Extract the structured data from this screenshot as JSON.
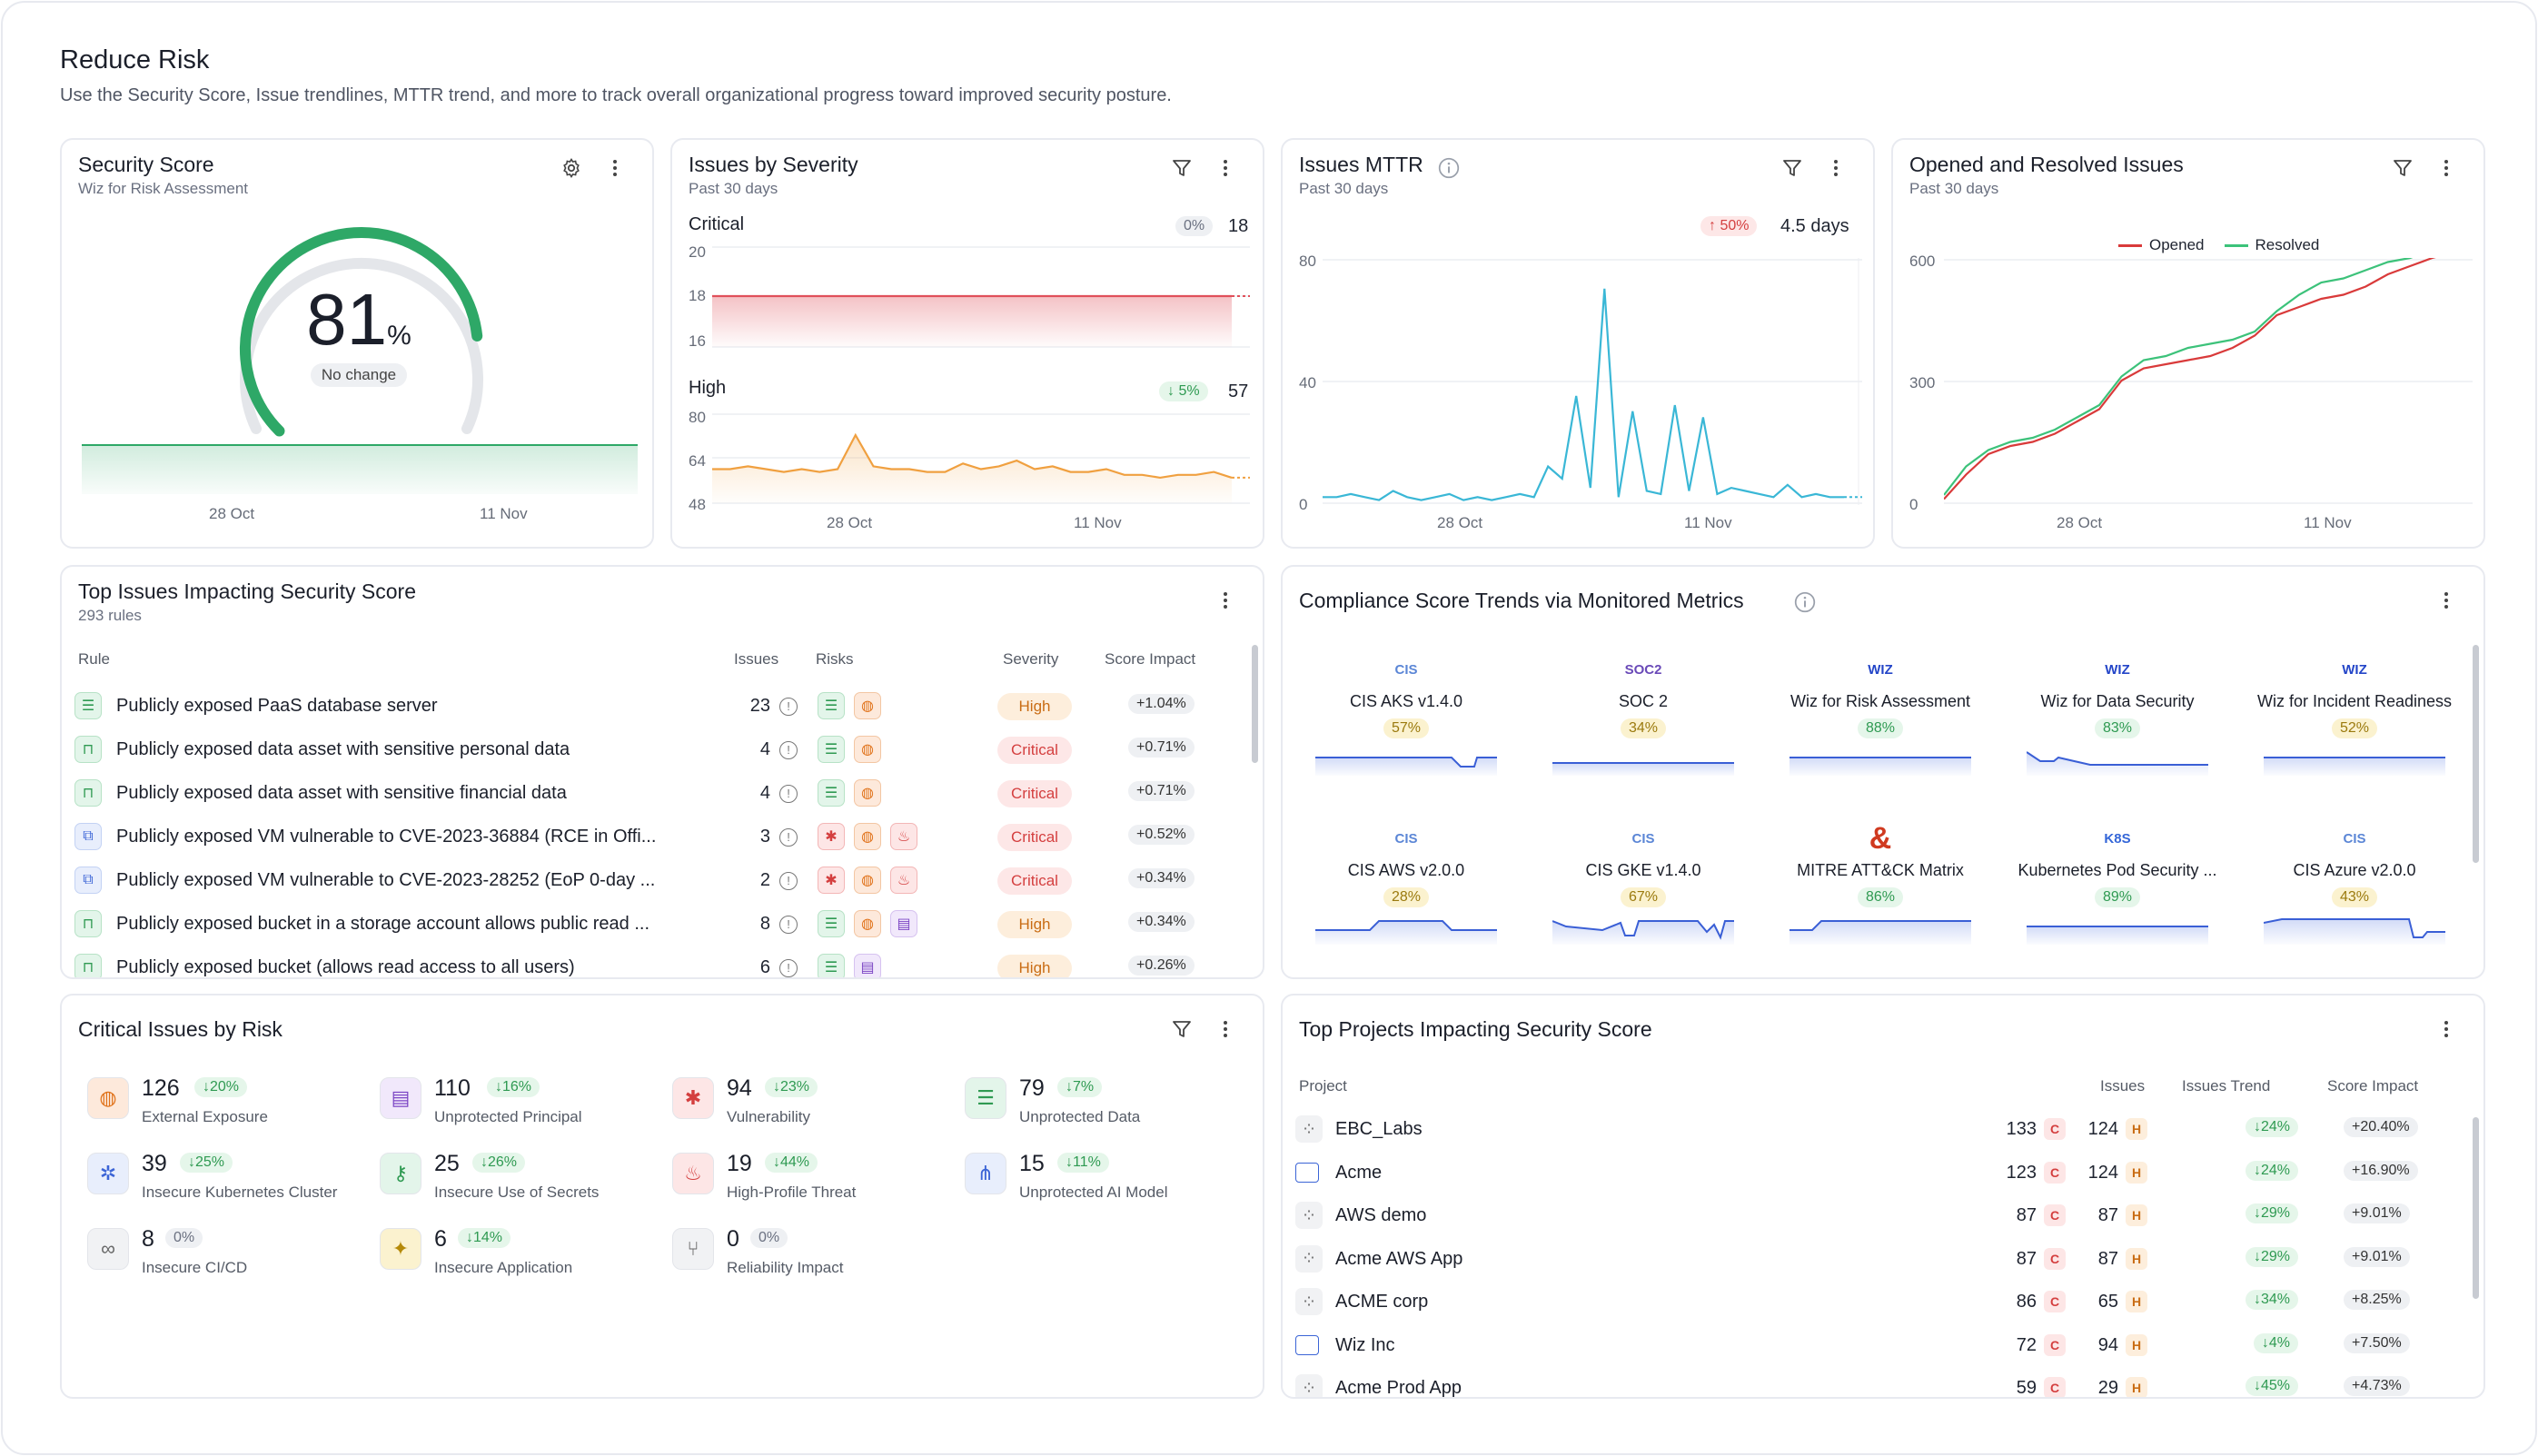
{
  "header": {
    "title": "Reduce Risk",
    "subtitle": "Use the Security Score, Issue trendlines, MTTR trend, and more to track overall organizational progress toward improved security posture."
  },
  "security_score": {
    "title": "Security Score",
    "subtitle": "Wiz for Risk Assessment",
    "value": "81",
    "unit": "%",
    "change": "No change",
    "score_fraction": 0.81,
    "x_ticks": [
      "28 Oct",
      "11 Nov"
    ]
  },
  "severity": {
    "title": "Issues by Severity",
    "subtitle": "Past 30 days",
    "critical": {
      "label": "Critical",
      "pct": "0%",
      "count": "18",
      "ticks": [
        "20",
        "18",
        "16"
      ]
    },
    "high": {
      "label": "High",
      "pct": "5%",
      "count": "57",
      "ticks": [
        "80",
        "64",
        "48"
      ]
    },
    "x_ticks": [
      "28 Oct",
      "11 Nov"
    ]
  },
  "mttr": {
    "title": "Issues MTTR",
    "subtitle": "Past 30 days",
    "pct": "50%",
    "value": "4.5 days",
    "ticks": [
      "80",
      "40",
      "0"
    ],
    "x_ticks": [
      "28 Oct",
      "11 Nov"
    ]
  },
  "opened": {
    "title": "Opened and Resolved Issues",
    "subtitle": "Past 30 days",
    "legend": [
      "Opened",
      "Resolved"
    ],
    "ticks": [
      "600",
      "300",
      "0"
    ],
    "x_ticks": [
      "28 Oct",
      "11 Nov"
    ],
    "colors": {
      "opened": "#d93a3a",
      "resolved": "#3cc27a"
    }
  },
  "chart_data": [
    {
      "type": "line",
      "series": [
        {
          "name": "Critical",
          "values": [
            18,
            18,
            18,
            18,
            18,
            18,
            18,
            18,
            18,
            18,
            18,
            18,
            18,
            18,
            18,
            18,
            18,
            18,
            18,
            18,
            18,
            18,
            18,
            18,
            18,
            18,
            18,
            18,
            18,
            18
          ]
        }
      ],
      "ylim": [
        16,
        20
      ]
    },
    {
      "type": "line",
      "series": [
        {
          "name": "High",
          "values": [
            60,
            60,
            61,
            60,
            59,
            60,
            59,
            60,
            72,
            61,
            60,
            60,
            59,
            59,
            62,
            60,
            61,
            63,
            60,
            61,
            59,
            59,
            60,
            58,
            58,
            57,
            58,
            58,
            59,
            57
          ]
        }
      ],
      "ylim": [
        48,
        80
      ]
    },
    {
      "type": "line",
      "series": [
        {
          "name": "MTTR",
          "values": [
            2,
            2,
            3,
            2,
            1,
            4,
            2,
            1,
            2,
            3,
            1,
            2,
            1,
            2,
            3,
            2,
            12,
            8,
            35,
            5,
            70,
            2,
            30,
            4,
            3,
            32,
            4,
            28,
            3,
            5,
            4,
            3,
            2,
            6,
            2,
            3,
            2,
            2
          ]
        }
      ],
      "ylim": [
        0,
        80
      ]
    },
    {
      "type": "line",
      "series": [
        {
          "name": "Opened",
          "values": [
            10,
            70,
            120,
            140,
            150,
            170,
            200,
            230,
            300,
            330,
            340,
            350,
            360,
            380,
            410,
            460,
            480,
            500,
            510,
            530,
            560,
            580,
            600,
            615
          ]
        },
        {
          "name": "Resolved",
          "values": [
            20,
            90,
            130,
            150,
            160,
            180,
            210,
            240,
            310,
            350,
            360,
            380,
            390,
            400,
            420,
            470,
            510,
            540,
            550,
            570,
            590,
            600,
            620,
            630
          ]
        }
      ],
      "ylim": [
        0,
        600
      ]
    }
  ],
  "top_issues": {
    "title": "Top Issues Impacting Security Score",
    "subtitle": "293 rules",
    "cols": {
      "rule": "Rule",
      "issues": "Issues",
      "risks": "Risks",
      "severity": "Severity",
      "impact": "Score Impact"
    },
    "rows": [
      {
        "rule": "Publicly exposed PaaS database server",
        "issues": "23",
        "severity": "High",
        "impact": "+1.04%",
        "icon": "database-icon",
        "risks": [
          "database-icon",
          "globe-icon"
        ]
      },
      {
        "rule": "Publicly exposed data asset with sensitive personal data",
        "issues": "4",
        "severity": "Critical",
        "impact": "+0.71%",
        "icon": "bucket-icon",
        "risks": [
          "database-icon",
          "globe-icon"
        ]
      },
      {
        "rule": "Publicly exposed data asset with sensitive financial data",
        "issues": "4",
        "severity": "Critical",
        "impact": "+0.71%",
        "icon": "bucket-icon",
        "risks": [
          "database-icon",
          "globe-icon"
        ]
      },
      {
        "rule": "Publicly exposed VM vulnerable to CVE-2023-36884 (RCE in Offi...",
        "issues": "3",
        "severity": "Critical",
        "impact": "+0.52%",
        "icon": "vm-icon",
        "risks": [
          "bug-icon",
          "globe-icon",
          "flame-icon"
        ]
      },
      {
        "rule": "Publicly exposed VM vulnerable to CVE-2023-28252 (EoP 0-day ...",
        "issues": "2",
        "severity": "Critical",
        "impact": "+0.34%",
        "icon": "vm-icon",
        "risks": [
          "bug-icon",
          "globe-icon",
          "flame-icon"
        ]
      },
      {
        "rule": "Publicly exposed bucket in a storage account allows public read ...",
        "issues": "8",
        "severity": "High",
        "impact": "+0.34%",
        "icon": "bucket-icon",
        "risks": [
          "database-icon",
          "globe-icon",
          "id-badge-icon"
        ]
      },
      {
        "rule": "Publicly exposed bucket (allows read access to all users)",
        "issues": "6",
        "severity": "High",
        "impact": "+0.26%",
        "icon": "bucket-icon",
        "risks": [
          "database-icon",
          "id-badge-icon"
        ]
      }
    ]
  },
  "compliance": {
    "title": "Compliance Score Trends via Monitored Metrics",
    "items": [
      {
        "name": "CIS AKS v1.4.0",
        "pct": "57%",
        "tone": "yellow",
        "logo": "CIS"
      },
      {
        "name": "SOC 2",
        "pct": "34%",
        "tone": "yellow",
        "logo": "SOC2"
      },
      {
        "name": "Wiz for Risk Assessment",
        "pct": "88%",
        "tone": "green",
        "logo": "WIZ"
      },
      {
        "name": "Wiz for Data Security",
        "pct": "83%",
        "tone": "green",
        "logo": "WIZ"
      },
      {
        "name": "Wiz for Incident Readiness",
        "pct": "52%",
        "tone": "yellow",
        "logo": "WIZ"
      },
      {
        "name": "CIS AWS v2.0.0",
        "pct": "28%",
        "tone": "yellow",
        "logo": "CIS"
      },
      {
        "name": "CIS GKE v1.4.0",
        "pct": "67%",
        "tone": "yellow",
        "logo": "CIS"
      },
      {
        "name": "MITRE ATT&CK Matrix",
        "pct": "86%",
        "tone": "green",
        "logo": "&"
      },
      {
        "name": "Kubernetes Pod Security ...",
        "pct": "89%",
        "tone": "green",
        "logo": "K8S"
      },
      {
        "name": "CIS Azure v2.0.0",
        "pct": "43%",
        "tone": "yellow",
        "logo": "CIS"
      }
    ]
  },
  "critical_risk": {
    "title": "Critical Issues by Risk",
    "items": [
      {
        "count": "126",
        "pct": "20%",
        "label": "External Exposure",
        "icon": "globe-icon",
        "tone": "o"
      },
      {
        "count": "110",
        "pct": "16%",
        "label": "Unprotected Principal",
        "icon": "id-badge-icon",
        "tone": "p"
      },
      {
        "count": "94",
        "pct": "23%",
        "label": "Vulnerability",
        "icon": "bug-icon",
        "tone": "r"
      },
      {
        "count": "79",
        "pct": "7%",
        "label": "Unprotected Data",
        "icon": "database-icon",
        "tone": "g"
      },
      {
        "count": "39",
        "pct": "25%",
        "label": "Insecure Kubernetes Cluster",
        "icon": "kubernetes-icon",
        "tone": "b"
      },
      {
        "count": "25",
        "pct": "26%",
        "label": "Insecure Use of Secrets",
        "icon": "key-icon",
        "tone": "g"
      },
      {
        "count": "19",
        "pct": "44%",
        "label": "High-Profile Threat",
        "icon": "flame-icon",
        "tone": "r"
      },
      {
        "count": "15",
        "pct": "11%",
        "label": "Unprotected AI Model",
        "icon": "ai-model-icon",
        "tone": "b"
      },
      {
        "count": "8",
        "pct": "0%",
        "label": "Insecure CI/CD",
        "icon": "infinity-icon",
        "tone": "n"
      },
      {
        "count": "6",
        "pct": "14%",
        "label": "Insecure Application",
        "icon": "app-icon",
        "tone": "y"
      },
      {
        "count": "0",
        "pct": "0%",
        "label": "Reliability Impact",
        "icon": "reliability-icon",
        "tone": "n"
      }
    ]
  },
  "projects": {
    "title": "Top Projects Impacting Security Score",
    "cols": {
      "project": "Project",
      "issues": "Issues",
      "trend": "Issues Trend",
      "impact": "Score Impact"
    },
    "rows": [
      {
        "name": "EBC_Labs",
        "c": "133",
        "h": "124",
        "trend": "24%",
        "impact": "+20.40%",
        "icon": "grid-icon"
      },
      {
        "name": "Acme",
        "c": "123",
        "h": "124",
        "trend": "24%",
        "impact": "+16.90%",
        "icon": "folder-icon"
      },
      {
        "name": "AWS demo",
        "c": "87",
        "h": "87",
        "trend": "29%",
        "impact": "+9.01%",
        "icon": "grid-icon"
      },
      {
        "name": "Acme AWS App",
        "c": "87",
        "h": "87",
        "trend": "29%",
        "impact": "+9.01%",
        "icon": "grid-icon"
      },
      {
        "name": "ACME corp",
        "c": "86",
        "h": "65",
        "trend": "34%",
        "impact": "+8.25%",
        "icon": "grid-icon"
      },
      {
        "name": "Wiz Inc",
        "c": "72",
        "h": "94",
        "trend": "4%",
        "impact": "+7.50%",
        "icon": "folder-icon"
      },
      {
        "name": "Acme Prod App",
        "c": "59",
        "h": "29",
        "trend": "45%",
        "impact": "+4.73%",
        "icon": "grid-icon"
      }
    ]
  },
  "letters": {
    "c": "C",
    "h": "H"
  }
}
